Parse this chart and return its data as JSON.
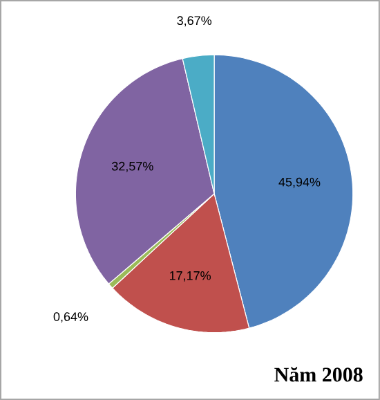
{
  "chart_data": {
    "type": "pie",
    "title": "Năm 2008",
    "categories": [
      null,
      null,
      null,
      null,
      null
    ],
    "values": [
      45.94,
      17.17,
      0.64,
      32.57,
      3.67
    ],
    "value_labels": [
      "45,94%",
      "17,17%",
      "0,64%",
      "32,57%",
      "3,67%"
    ],
    "colors": [
      "#4f81bd",
      "#c0504d",
      "#9bbb59",
      "#8064a2",
      "#4bacc6"
    ]
  }
}
